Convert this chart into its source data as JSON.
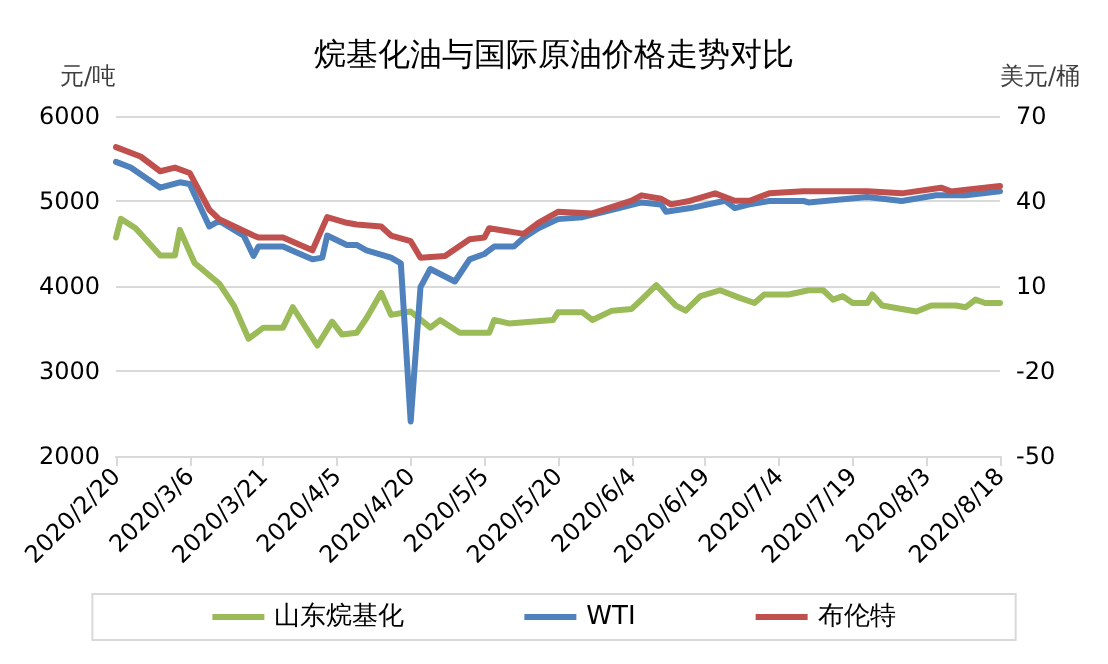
{
  "chart_data": {
    "type": "line",
    "title": "烷基化油与国际原油价格走势对比",
    "ylabel": "元/吨",
    "y2label": "美元/桶",
    "xlim": [
      "2020-02-20",
      "2020-08-18"
    ],
    "xticks": [
      {
        "value": "2020-02-20",
        "label": "2020/2/20"
      },
      {
        "value": "2020-03-06",
        "label": "2020/3/6"
      },
      {
        "value": "2020-03-21",
        "label": "2020/3/21"
      },
      {
        "value": "2020-04-05",
        "label": "2020/4/5"
      },
      {
        "value": "2020-04-20",
        "label": "2020/4/20"
      },
      {
        "value": "2020-05-05",
        "label": "2020/5/5"
      },
      {
        "value": "2020-05-20",
        "label": "2020/5/20"
      },
      {
        "value": "2020-06-04",
        "label": "2020/6/4"
      },
      {
        "value": "2020-06-19",
        "label": "2020/6/19"
      },
      {
        "value": "2020-07-04",
        "label": "2020/7/4"
      },
      {
        "value": "2020-07-19",
        "label": "2020/7/19"
      },
      {
        "value": "2020-08-03",
        "label": "2020/8/3"
      },
      {
        "value": "2020-08-18",
        "label": "2020/8/18"
      }
    ],
    "ylim": [
      2000,
      6000
    ],
    "yticks": [
      2000,
      3000,
      4000,
      5000,
      6000
    ],
    "y2lim": [
      -50,
      70
    ],
    "y2ticks": [
      -50,
      -20,
      10,
      40,
      70
    ],
    "grid": "y",
    "legend": "bottom",
    "marker": "none",
    "line_style": "solid",
    "series": [
      {
        "name": "山东烷基化",
        "color": "#9bbb59",
        "x": [
          "2020-02-20",
          "2020-02-21",
          "2020-02-24",
          "2020-02-29",
          "2020-03-03",
          "2020-03-04",
          "2020-03-07",
          "2020-03-12",
          "2020-03-15",
          "2020-03-18",
          "2020-03-21",
          "2020-03-25",
          "2020-03-27",
          "2020-04-01",
          "2020-04-04",
          "2020-04-06",
          "2020-04-09",
          "2020-04-11",
          "2020-04-14",
          "2020-04-16",
          "2020-04-20",
          "2020-04-24",
          "2020-04-26",
          "2020-04-30",
          "2020-05-06",
          "2020-05-07",
          "2020-05-10",
          "2020-05-19",
          "2020-05-20",
          "2020-05-25",
          "2020-05-27",
          "2020-05-31",
          "2020-06-04",
          "2020-06-06",
          "2020-06-09",
          "2020-06-13",
          "2020-06-15",
          "2020-06-18",
          "2020-06-22",
          "2020-06-26",
          "2020-06-29",
          "2020-07-01",
          "2020-07-06",
          "2020-07-10",
          "2020-07-13",
          "2020-07-15",
          "2020-07-17",
          "2020-07-19",
          "2020-07-22",
          "2020-07-23",
          "2020-07-25",
          "2020-07-29",
          "2020-08-01",
          "2020-08-04",
          "2020-08-09",
          "2020-08-11",
          "2020-08-13",
          "2020-08-15",
          "2020-08-18"
        ],
        "values": [
          4570,
          4790,
          4680,
          4360,
          4360,
          4660,
          4270,
          4030,
          3770,
          3380,
          3510,
          3510,
          3750,
          3300,
          3580,
          3430,
          3450,
          3620,
          3920,
          3660,
          3700,
          3510,
          3600,
          3450,
          3450,
          3600,
          3560,
          3600,
          3690,
          3690,
          3600,
          3710,
          3730,
          3840,
          4010,
          3770,
          3710,
          3880,
          3950,
          3860,
          3800,
          3900,
          3900,
          3950,
          3950,
          3840,
          3880,
          3800,
          3800,
          3900,
          3770,
          3730,
          3700,
          3770,
          3770,
          3750,
          3840,
          3800,
          3800
        ]
      },
      {
        "name": "WTI",
        "color": "#4f81bd",
        "axis": "y2",
        "x": [
          "2020-02-20",
          "2020-02-23",
          "2020-02-29",
          "2020-03-04",
          "2020-03-06",
          "2020-03-10",
          "2020-03-12",
          "2020-03-17",
          "2020-03-19",
          "2020-03-20",
          "2020-03-25",
          "2020-03-31",
          "2020-04-02",
          "2020-04-03",
          "2020-04-07",
          "2020-04-09",
          "2020-04-11",
          "2020-04-16",
          "2020-04-18",
          "2020-04-20",
          "2020-04-22",
          "2020-04-24",
          "2020-04-29",
          "2020-05-02",
          "2020-05-05",
          "2020-05-07",
          "2020-05-11",
          "2020-05-13",
          "2020-05-16",
          "2020-05-20",
          "2020-05-25",
          "2020-05-31",
          "2020-06-06",
          "2020-06-10",
          "2020-06-11",
          "2020-06-16",
          "2020-06-23",
          "2020-06-25",
          "2020-06-28",
          "2020-07-02",
          "2020-07-09",
          "2020-07-10",
          "2020-07-22",
          "2020-07-29",
          "2020-08-05",
          "2020-08-11",
          "2020-08-18"
        ],
        "values": [
          53.8,
          51.8,
          44.7,
          46.6,
          46,
          31,
          33,
          27.8,
          20.6,
          23.9,
          23.9,
          19.4,
          20,
          27.8,
          24.5,
          24.5,
          22.6,
          20,
          18,
          -37.8,
          9.6,
          16,
          11.6,
          19.4,
          21.3,
          23.9,
          23.9,
          27,
          30.4,
          33.6,
          34.3,
          36.9,
          39.5,
          38.8,
          36.2,
          37.5,
          40.1,
          37.5,
          38.8,
          40,
          40,
          39.5,
          41.4,
          40,
          42,
          42,
          43.4
        ]
      },
      {
        "name": "布伦特",
        "color": "#c0504d",
        "axis": "y2",
        "x": [
          "2020-02-20",
          "2020-02-25",
          "2020-02-29",
          "2020-03-03",
          "2020-03-06",
          "2020-03-10",
          "2020-03-12",
          "2020-03-19",
          "2020-03-20",
          "2020-03-25",
          "2020-03-31",
          "2020-04-03",
          "2020-04-07",
          "2020-04-09",
          "2020-04-14",
          "2020-04-16",
          "2020-04-20",
          "2020-04-22",
          "2020-04-27",
          "2020-05-02",
          "2020-05-05",
          "2020-05-06",
          "2020-05-13",
          "2020-05-16",
          "2020-05-20",
          "2020-05-27",
          "2020-06-04",
          "2020-06-06",
          "2020-06-10",
          "2020-06-12",
          "2020-06-16",
          "2020-06-21",
          "2020-06-25",
          "2020-06-28",
          "2020-07-02",
          "2020-07-09",
          "2020-07-22",
          "2020-07-29",
          "2020-08-06",
          "2020-08-08",
          "2020-08-18"
        ],
        "values": [
          59,
          55.7,
          50.5,
          51.8,
          49.9,
          36.9,
          33.6,
          27.8,
          27.1,
          27.1,
          22.6,
          34.3,
          32.3,
          31.7,
          31,
          27.8,
          25.8,
          20,
          20.6,
          26.5,
          27.1,
          30.4,
          28.4,
          32.3,
          36.2,
          35.6,
          40.1,
          42,
          40.8,
          38.8,
          40.1,
          42.7,
          40.1,
          40.1,
          42.7,
          43.4,
          43.4,
          42.7,
          44.7,
          43.4,
          45.3
        ]
      }
    ]
  }
}
